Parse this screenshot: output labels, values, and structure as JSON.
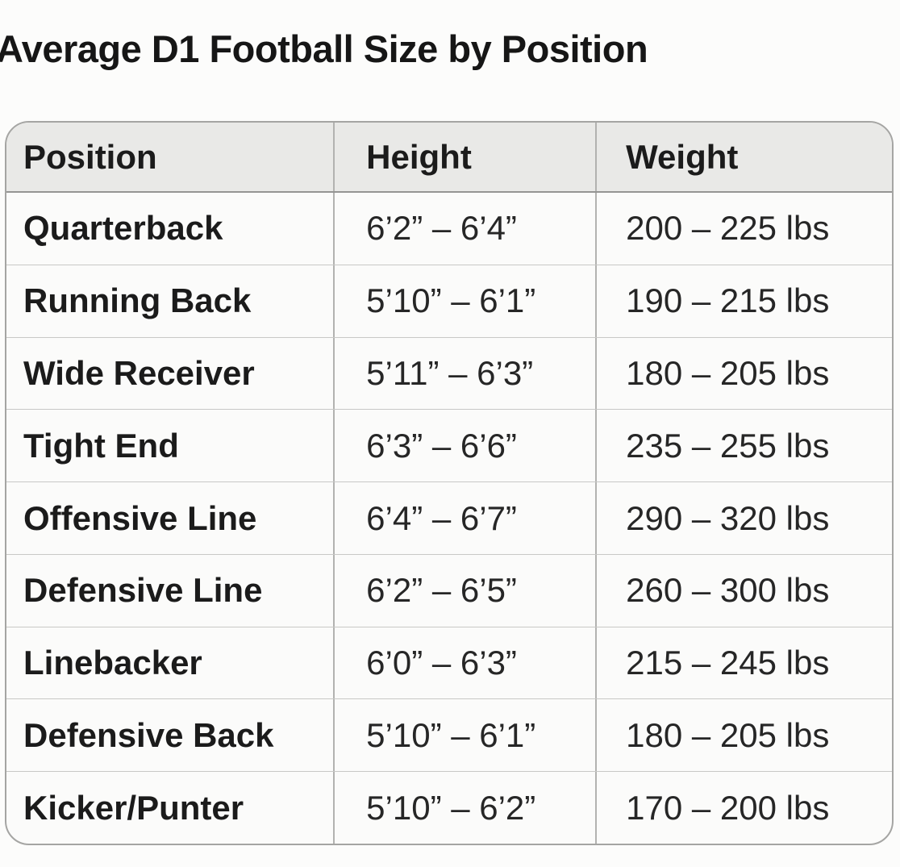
{
  "page": {
    "background_color": "#fcfcfb"
  },
  "chart_data": {
    "type": "table",
    "title": "Average D1 Football Size by Position",
    "columns": [
      "Position",
      "Height",
      "Weight"
    ],
    "rows": [
      {
        "position": "Quarterback",
        "height": "6’2” – 6’4”",
        "weight": "200 – 225 lbs"
      },
      {
        "position": "Running Back",
        "height": "5’10” – 6’1”",
        "weight": "190 – 215 lbs"
      },
      {
        "position": "Wide Receiver",
        "height": "5’11” – 6’3”",
        "weight": "180 – 205 lbs"
      },
      {
        "position": "Tight End",
        "height": "6’3” – 6’6”",
        "weight": "235 – 255 lbs"
      },
      {
        "position": "Offensive Line",
        "height": "6’4” – 6’7”",
        "weight": "290 – 320 lbs"
      },
      {
        "position": "Defensive Line",
        "height": "6’2” – 6’5”",
        "weight": "260 – 300 lbs"
      },
      {
        "position": "Linebacker",
        "height": "6’0” – 6’3”",
        "weight": "215 – 245 lbs"
      },
      {
        "position": "Defensive Back",
        "height": "5’10” – 6’1”",
        "weight": "180 – 205 lbs"
      },
      {
        "position": "Kicker/Punter",
        "height": "5’10” – 6’2”",
        "weight": "170 – 200 lbs"
      }
    ]
  },
  "colors": {
    "header_background": "#e9e9e7",
    "body_background": "#fbfbfa",
    "outer_border": "#a5a5a3",
    "column_divider": "#b2b2b0",
    "row_divider": "#c8c8c6",
    "title_text": "#161616",
    "position_text": "#1b1b1b",
    "value_text": "#262626"
  }
}
